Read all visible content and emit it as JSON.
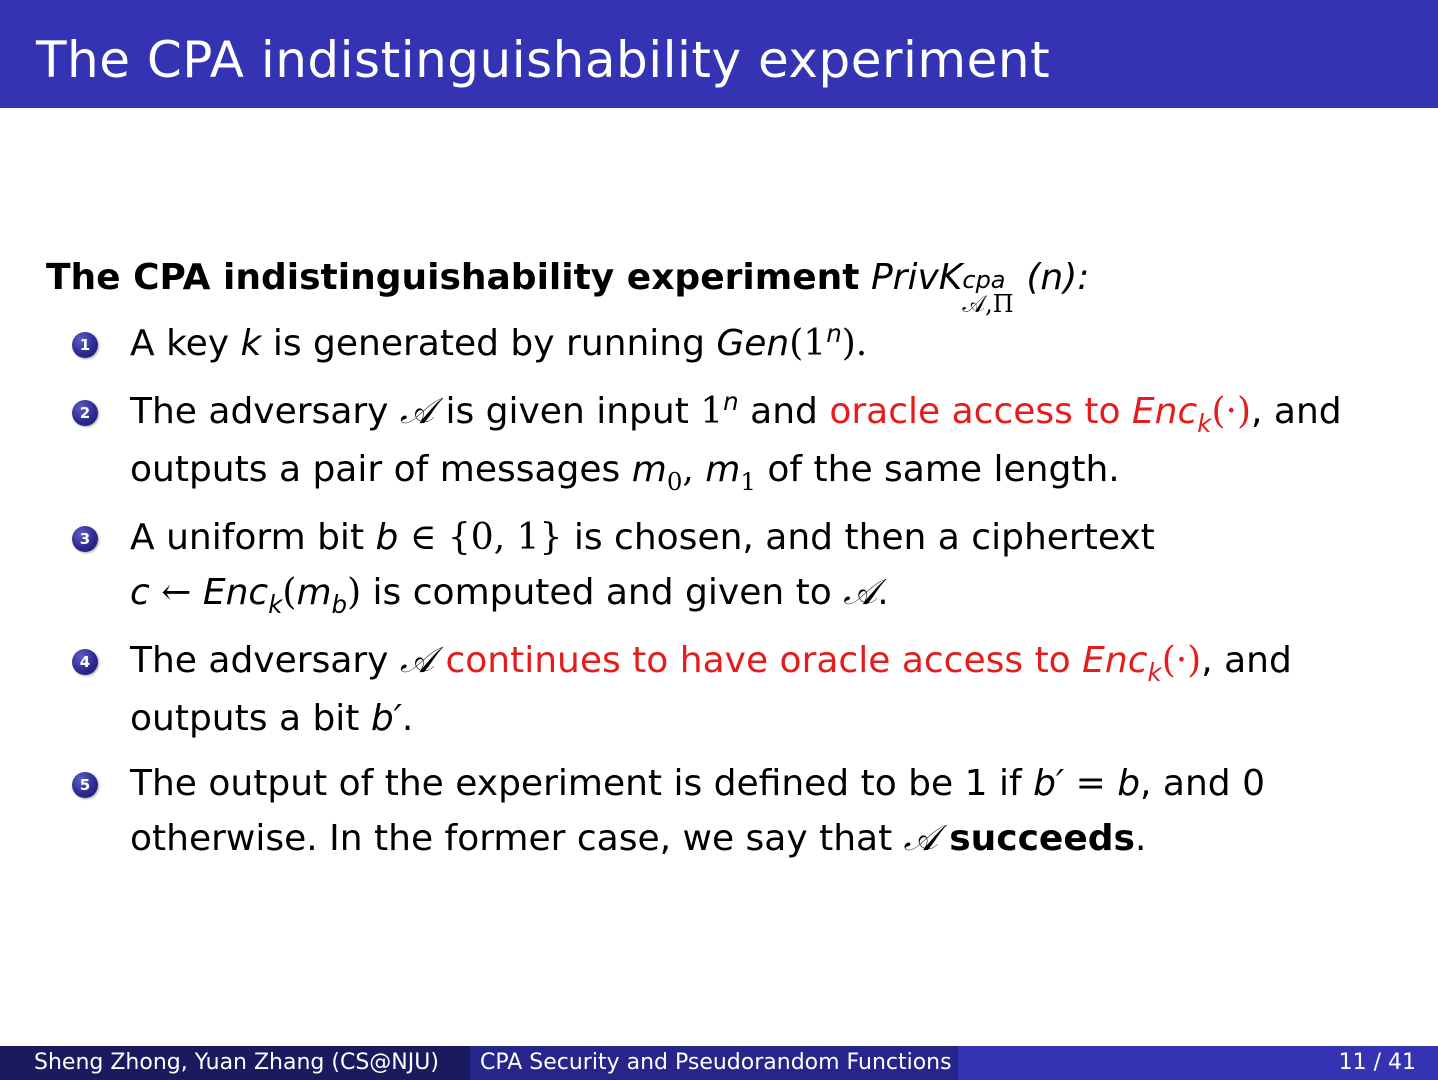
{
  "slide": {
    "title": "The CPA indistinguishability experiment"
  },
  "heading": {
    "bold": "The CPA indistinguishability experiment",
    "priv": "PrivK",
    "sup": "cpa",
    "sub": "𝒜,Π",
    "arg": "(n):"
  },
  "items": [
    {
      "num": "1",
      "line1": [
        "A key ",
        "k",
        " is generated by running ",
        "Gen",
        "(1",
        "n",
        ")."
      ]
    },
    {
      "num": "2",
      "line1": [
        "The adversary ",
        "𝒜",
        " is given input ",
        "1",
        "n",
        " and ",
        "oracle access to ",
        "Enc",
        "k",
        "(·)",
        ", and"
      ],
      "line2": [
        "outputs a pair of messages ",
        "m",
        "0",
        ", ",
        "m",
        "1",
        " of the same length."
      ]
    },
    {
      "num": "3",
      "line1": [
        "A uniform bit ",
        "b",
        " ∈ {0, 1}",
        " is chosen, and then a ciphertext"
      ],
      "line2": [
        "c",
        " ← ",
        "Enc",
        "k",
        "(",
        "m",
        "b",
        ")",
        " is computed and given to ",
        "𝒜",
        "."
      ]
    },
    {
      "num": "4",
      "line1": [
        "The adversary ",
        "𝒜",
        " ",
        "continues to have oracle access to ",
        "Enc",
        "k",
        "(·)",
        ", and"
      ],
      "line2": [
        "outputs a bit ",
        "b′",
        "."
      ]
    },
    {
      "num": "5",
      "line1": [
        "The output of the experiment is defined to be 1 if ",
        "b′",
        " = ",
        "b",
        ", and 0"
      ],
      "line2": [
        "otherwise. In the former case, we say that ",
        "𝒜",
        " ",
        "succeeds",
        "."
      ]
    }
  ],
  "footer": {
    "authors": "Sheng Zhong, Yuan Zhang (CS@NJU)",
    "course": "CPA Security and Pseudorandom Functions (",
    "page": "11 / 41"
  },
  "colors": {
    "header_bg": "#3333b3",
    "emphasis": "#e61c1c"
  }
}
